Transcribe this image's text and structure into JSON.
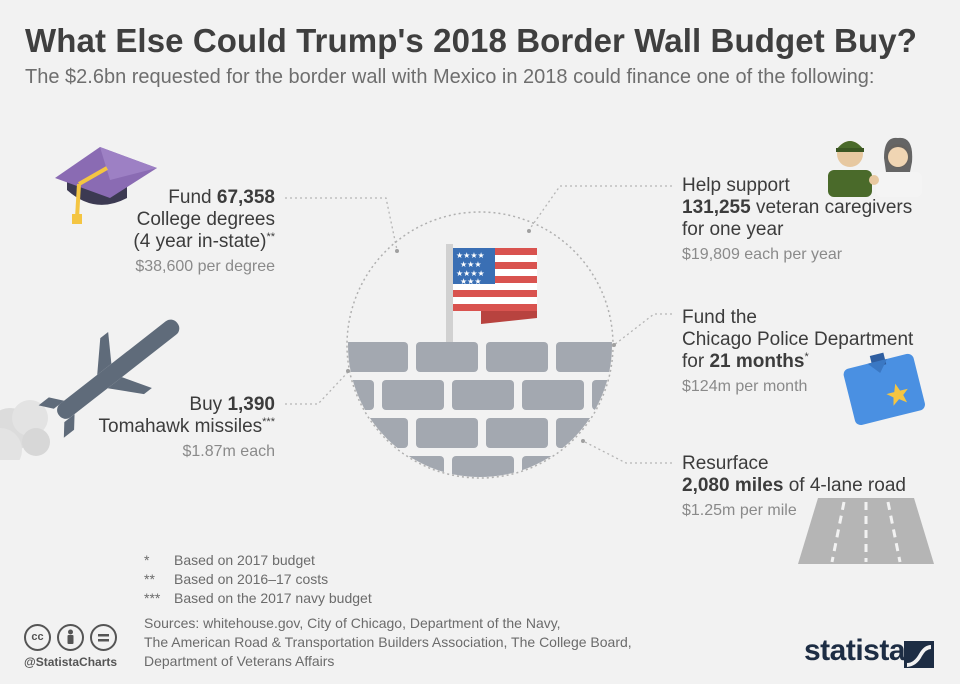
{
  "title": "What Else Could Trump's 2018 Border Wall Budget Buy?",
  "subtitle": "The $2.6bn requested for the border wall with Mexico in 2018 could finance one of the following:",
  "items": {
    "college": {
      "line1_pre": "Fund ",
      "line1_bold": "67,358",
      "line2": "College degrees",
      "line3": "(4 year in-state)",
      "line3_mark": "**",
      "sub": "$38,600 per degree",
      "icon": "graduation-cap-icon"
    },
    "missiles": {
      "line1_pre": "Buy ",
      "line1_bold": "1,390",
      "line2": "Tomahawk missiles",
      "line2_mark": "***",
      "sub": "$1.87m each",
      "icon": "missile-icon"
    },
    "veterans": {
      "line1": "Help support",
      "line2_bold": "131,255",
      "line2_post": " veteran caregivers",
      "line3": "for one year",
      "sub": "$19,809 each per year",
      "icon": "caregivers-icon"
    },
    "police": {
      "line1": "Fund the",
      "line2": "Chicago Police Department",
      "line3_pre": "for ",
      "line3_bold": "21 months",
      "line3_mark": "*",
      "sub": "$124m per month",
      "icon": "police-shirt-icon"
    },
    "road": {
      "line1": "Resurface",
      "line2_bold": "2,080 miles",
      "line2_post": " of 4-lane road",
      "sub": "$1.25m per mile",
      "icon": "road-icon"
    }
  },
  "notes": [
    {
      "mark": "*",
      "text": "Based on 2017 budget"
    },
    {
      "mark": "**",
      "text": "Based on 2016–17 costs"
    },
    {
      "mark": "***",
      "text": "Based on the 2017 navy budget"
    }
  ],
  "sources": [
    "Sources: whitehouse.gov, City of Chicago, Department of the Navy,",
    "The American Road & Transportation Builders Association, The College Board,",
    "Department of Veterans Affairs"
  ],
  "footer": {
    "handle": "@StatistaCharts",
    "brand": "statista",
    "cc_icons": [
      "cc-icon",
      "by-icon",
      "nd-icon"
    ]
  },
  "colors": {
    "background": "#f2f2f2",
    "wall_brick": "#a3a8b0",
    "flag_red": "#d9534f",
    "flag_blue": "#3a6fb4",
    "brand": "#1d2d44"
  }
}
